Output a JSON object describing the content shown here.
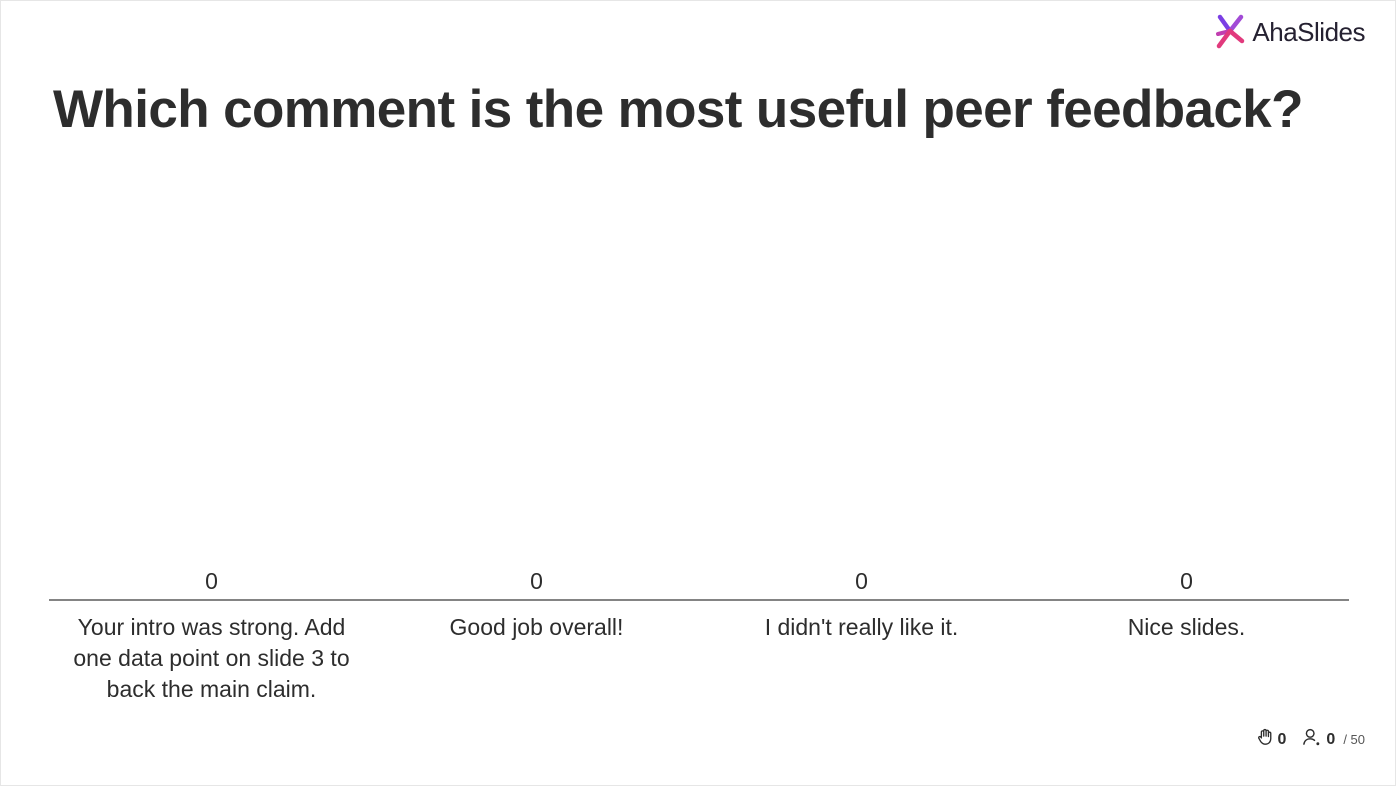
{
  "brand": {
    "name": "AhaSlides",
    "logo_icon": "ahaslides-logo-icon",
    "accent_colors": [
      "#e13a7d",
      "#7b3fe4",
      "#2d2160"
    ]
  },
  "question": {
    "title": "Which comment is the most useful peer feedback?"
  },
  "chart_data": {
    "type": "bar",
    "categories": [
      "Your intro was strong. Add one data point on slide 3 to back the main claim.",
      "Good job overall!",
      "I didn't really like it.",
      "Nice slides."
    ],
    "values": [
      0,
      0,
      0,
      0
    ],
    "value_labels": [
      "0",
      "0",
      "0",
      "0"
    ],
    "title": "",
    "xlabel": "",
    "ylabel": "",
    "grid": false,
    "bar_color": "#5b5b5b",
    "axis_color": "#3a3a3a"
  },
  "footer": {
    "reactions_icon": "hand-icon",
    "reactions_count": "0",
    "participants_icon": "user-icon",
    "participants_count": "0",
    "participants_max": "/ 50"
  }
}
